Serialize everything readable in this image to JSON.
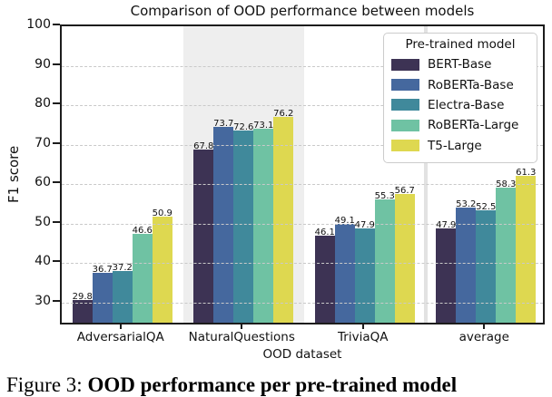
{
  "chart_data": {
    "type": "bar",
    "title": "Comparison of OOD performance between models",
    "xlabel": "OOD dataset",
    "ylabel": "F1 score",
    "categories": [
      "AdversarialQA",
      "NaturalQuestions",
      "TriviaQA",
      "average"
    ],
    "series": [
      {
        "name": "BERT-Base",
        "color": "#3d3354",
        "values": [
          29.8,
          67.8,
          46.1,
          47.9
        ]
      },
      {
        "name": "RoBERTa-Base",
        "color": "#45689e",
        "values": [
          36.7,
          73.7,
          49.1,
          53.2
        ]
      },
      {
        "name": "Electra-Base",
        "color": "#40899b",
        "values": [
          37.2,
          72.6,
          47.9,
          52.5
        ]
      },
      {
        "name": "RoBERTa-Large",
        "color": "#6fc2a3",
        "values": [
          46.6,
          73.1,
          55.3,
          58.3
        ]
      },
      {
        "name": "T5-Large",
        "color": "#ded850",
        "values": [
          50.9,
          76.2,
          56.7,
          61.3
        ]
      }
    ],
    "legend_title": "Pre-trained model",
    "legend_position": "upper right",
    "ylim": [
      24,
      100
    ],
    "yticks": [
      30,
      40,
      50,
      60,
      70,
      80,
      90,
      100
    ],
    "grid": "horizontal dashed, drawn over bars",
    "highlight_category": "NaturalQuestions",
    "highlight_color": "#eeeeee",
    "separator_before_category": "average",
    "bar_value_labels_shown": true
  },
  "caption": {
    "prefix": "Figure 3:",
    "bold": "OOD performance per pre-trained model"
  }
}
